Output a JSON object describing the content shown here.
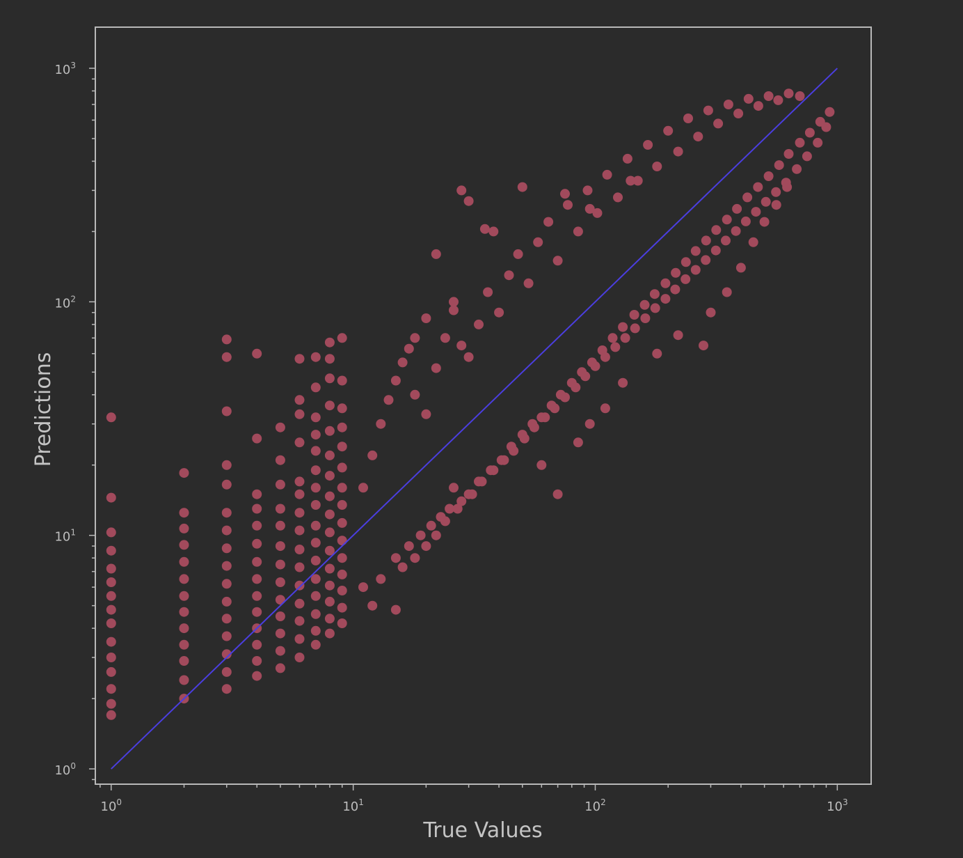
{
  "chart_data": {
    "type": "scatter",
    "title": "",
    "xlabel": "True Values",
    "ylabel": "Predictions",
    "xscale": "log",
    "yscale": "log",
    "xlim": [
      0.86,
      1380
    ],
    "ylim": [
      0.86,
      1500
    ],
    "xticks": [
      {
        "base": "10",
        "exp": "0"
      },
      {
        "base": "10",
        "exp": "1"
      },
      {
        "base": "10",
        "exp": "2"
      },
      {
        "base": "10",
        "exp": "3"
      }
    ],
    "yticks": [
      {
        "base": "10",
        "exp": "0"
      },
      {
        "base": "10",
        "exp": "1"
      },
      {
        "base": "10",
        "exp": "2"
      },
      {
        "base": "10",
        "exp": "3"
      }
    ],
    "grid": false,
    "colors": {
      "background": "#2b2b2b",
      "frame": "#b9b9b9",
      "points": "#a24a5c",
      "reference_line": "#4b3ee0"
    },
    "series": [
      {
        "kind": "scatter",
        "color": "#a24a5c",
        "points": [
          [
            1,
            1.7
          ],
          [
            1,
            1.9
          ],
          [
            1,
            2.2
          ],
          [
            1,
            2.6
          ],
          [
            1,
            3.0
          ],
          [
            1,
            3.5
          ],
          [
            1,
            4.2
          ],
          [
            1,
            4.8
          ],
          [
            1,
            5.5
          ],
          [
            1,
            6.3
          ],
          [
            1,
            7.2
          ],
          [
            1,
            8.6
          ],
          [
            1,
            10.3
          ],
          [
            1,
            14.5
          ],
          [
            1,
            32
          ],
          [
            2,
            2.0
          ],
          [
            2,
            2.4
          ],
          [
            2,
            2.9
          ],
          [
            2,
            3.4
          ],
          [
            2,
            4.0
          ],
          [
            2,
            4.7
          ],
          [
            2,
            5.5
          ],
          [
            2,
            6.5
          ],
          [
            2,
            7.7
          ],
          [
            2,
            9.1
          ],
          [
            2,
            10.7
          ],
          [
            2,
            12.5
          ],
          [
            2,
            18.5
          ],
          [
            3,
            2.2
          ],
          [
            3,
            2.6
          ],
          [
            3,
            3.1
          ],
          [
            3,
            3.7
          ],
          [
            3,
            4.4
          ],
          [
            3,
            5.2
          ],
          [
            3,
            6.2
          ],
          [
            3,
            7.4
          ],
          [
            3,
            8.8
          ],
          [
            3,
            10.5
          ],
          [
            3,
            12.5
          ],
          [
            3,
            16.5
          ],
          [
            3,
            20
          ],
          [
            3,
            34
          ],
          [
            3,
            58
          ],
          [
            3,
            69
          ],
          [
            4,
            2.5
          ],
          [
            4,
            2.9
          ],
          [
            4,
            3.4
          ],
          [
            4,
            4.0
          ],
          [
            4,
            4.7
          ],
          [
            4,
            5.5
          ],
          [
            4,
            6.5
          ],
          [
            4,
            7.7
          ],
          [
            4,
            9.2
          ],
          [
            4,
            11
          ],
          [
            4,
            13
          ],
          [
            4,
            15
          ],
          [
            4,
            26
          ],
          [
            4,
            60
          ],
          [
            5,
            2.7
          ],
          [
            5,
            3.2
          ],
          [
            5,
            3.8
          ],
          [
            5,
            4.5
          ],
          [
            5,
            5.3
          ],
          [
            5,
            6.3
          ],
          [
            5,
            7.5
          ],
          [
            5,
            9
          ],
          [
            5,
            11
          ],
          [
            5,
            13
          ],
          [
            5,
            16.5
          ],
          [
            5,
            21
          ],
          [
            5,
            29
          ],
          [
            6,
            3.0
          ],
          [
            6,
            3.6
          ],
          [
            6,
            4.3
          ],
          [
            6,
            5.1
          ],
          [
            6,
            6.1
          ],
          [
            6,
            7.3
          ],
          [
            6,
            8.7
          ],
          [
            6,
            10.5
          ],
          [
            6,
            12.5
          ],
          [
            6,
            15
          ],
          [
            6,
            17
          ],
          [
            6,
            25
          ],
          [
            6,
            33
          ],
          [
            6,
            38
          ],
          [
            6,
            57
          ],
          [
            7,
            3.4
          ],
          [
            7,
            3.9
          ],
          [
            7,
            4.6
          ],
          [
            7,
            5.5
          ],
          [
            7,
            6.5
          ],
          [
            7,
            7.8
          ],
          [
            7,
            9.3
          ],
          [
            7,
            11
          ],
          [
            7,
            13.5
          ],
          [
            7,
            16
          ],
          [
            7,
            19
          ],
          [
            7,
            23
          ],
          [
            7,
            27
          ],
          [
            7,
            32
          ],
          [
            7,
            43
          ],
          [
            7,
            58
          ],
          [
            8,
            3.8
          ],
          [
            8,
            4.4
          ],
          [
            8,
            5.2
          ],
          [
            8,
            6.1
          ],
          [
            8,
            7.2
          ],
          [
            8,
            8.6
          ],
          [
            8,
            10.3
          ],
          [
            8,
            12.3
          ],
          [
            8,
            14.7
          ],
          [
            8,
            18
          ],
          [
            8,
            22
          ],
          [
            8,
            28
          ],
          [
            8,
            36
          ],
          [
            8,
            47
          ],
          [
            8,
            57
          ],
          [
            8,
            67
          ],
          [
            9,
            4.2
          ],
          [
            9,
            4.9
          ],
          [
            9,
            5.8
          ],
          [
            9,
            6.8
          ],
          [
            9,
            8
          ],
          [
            9,
            9.5
          ],
          [
            9,
            11.3
          ],
          [
            9,
            13.5
          ],
          [
            9,
            16
          ],
          [
            9,
            19.5
          ],
          [
            9,
            24
          ],
          [
            9,
            29
          ],
          [
            9,
            35
          ],
          [
            9,
            46
          ],
          [
            9,
            70
          ],
          [
            12,
            5
          ],
          [
            15,
            4.8
          ],
          [
            11,
            6
          ],
          [
            13,
            6.5
          ],
          [
            16,
            7.3
          ],
          [
            18,
            8
          ],
          [
            20,
            9
          ],
          [
            22,
            10
          ],
          [
            24,
            11.5
          ],
          [
            27,
            13
          ],
          [
            30,
            15
          ],
          [
            26,
            16
          ],
          [
            33,
            17
          ],
          [
            37,
            19
          ],
          [
            41,
            21
          ],
          [
            45,
            24
          ],
          [
            50,
            27
          ],
          [
            55,
            30
          ],
          [
            60,
            32
          ],
          [
            66,
            36
          ],
          [
            72,
            40
          ],
          [
            80,
            45
          ],
          [
            88,
            50
          ],
          [
            97,
            55
          ],
          [
            107,
            62
          ],
          [
            118,
            70
          ],
          [
            130,
            78
          ],
          [
            145,
            88
          ],
          [
            160,
            97
          ],
          [
            176,
            108
          ],
          [
            195,
            120
          ],
          [
            215,
            133
          ],
          [
            237,
            148
          ],
          [
            260,
            165
          ],
          [
            287,
            183
          ],
          [
            316,
            203
          ],
          [
            350,
            225
          ],
          [
            385,
            250
          ],
          [
            425,
            280
          ],
          [
            470,
            310
          ],
          [
            520,
            345
          ],
          [
            575,
            385
          ],
          [
            630,
            430
          ],
          [
            700,
            480
          ],
          [
            770,
            530
          ],
          [
            850,
            590
          ],
          [
            930,
            650
          ],
          [
            11,
            16
          ],
          [
            12,
            22
          ],
          [
            13,
            30
          ],
          [
            14,
            38
          ],
          [
            15,
            46
          ],
          [
            16,
            55
          ],
          [
            17,
            63
          ],
          [
            18,
            40
          ],
          [
            20,
            33
          ],
          [
            22,
            52
          ],
          [
            24,
            70
          ],
          [
            26,
            92
          ],
          [
            28,
            65
          ],
          [
            30,
            58
          ],
          [
            33,
            80
          ],
          [
            36,
            110
          ],
          [
            40,
            90
          ],
          [
            44,
            130
          ],
          [
            48,
            160
          ],
          [
            53,
            120
          ],
          [
            58,
            180
          ],
          [
            64,
            220
          ],
          [
            70,
            150
          ],
          [
            77,
            260
          ],
          [
            85,
            200
          ],
          [
            93,
            300
          ],
          [
            102,
            240
          ],
          [
            112,
            350
          ],
          [
            124,
            280
          ],
          [
            136,
            410
          ],
          [
            150,
            330
          ],
          [
            165,
            470
          ],
          [
            180,
            380
          ],
          [
            200,
            540
          ],
          [
            220,
            440
          ],
          [
            242,
            610
          ],
          [
            266,
            510
          ],
          [
            293,
            660
          ],
          [
            322,
            580
          ],
          [
            355,
            700
          ],
          [
            390,
            640
          ],
          [
            430,
            740
          ],
          [
            472,
            690
          ],
          [
            520,
            760
          ],
          [
            570,
            730
          ],
          [
            630,
            780
          ],
          [
            700,
            760
          ],
          [
            35,
            205
          ],
          [
            30,
            270
          ],
          [
            28,
            300
          ],
          [
            50,
            310
          ],
          [
            38,
            200
          ],
          [
            22,
            160
          ],
          [
            26,
            100
          ],
          [
            20,
            85
          ],
          [
            18,
            70
          ],
          [
            75,
            290
          ],
          [
            95,
            250
          ],
          [
            140,
            330
          ],
          [
            60,
            20
          ],
          [
            70,
            15
          ],
          [
            85,
            25
          ],
          [
            95,
            30
          ],
          [
            110,
            35
          ],
          [
            130,
            45
          ],
          [
            180,
            60
          ],
          [
            220,
            72
          ],
          [
            280,
            65
          ],
          [
            300,
            90
          ],
          [
            350,
            110
          ],
          [
            400,
            140
          ],
          [
            450,
            180
          ],
          [
            500,
            220
          ],
          [
            560,
            260
          ],
          [
            620,
            310
          ],
          [
            680,
            370
          ],
          [
            750,
            420
          ],
          [
            830,
            480
          ],
          [
            900,
            560
          ],
          [
            15,
            8
          ],
          [
            17,
            9
          ],
          [
            19,
            10
          ],
          [
            21,
            11
          ],
          [
            23,
            12
          ],
          [
            25,
            13
          ],
          [
            28,
            14
          ],
          [
            31,
            15
          ],
          [
            34,
            17
          ],
          [
            38,
            19
          ],
          [
            42,
            21
          ],
          [
            46,
            23
          ],
          [
            51,
            26
          ],
          [
            56,
            29
          ],
          [
            62,
            32
          ],
          [
            68,
            35
          ],
          [
            75,
            39
          ],
          [
            83,
            43
          ],
          [
            91,
            48
          ],
          [
            100,
            53
          ],
          [
            110,
            58
          ],
          [
            121,
            64
          ],
          [
            133,
            70
          ],
          [
            146,
            77
          ],
          [
            161,
            85
          ],
          [
            177,
            94
          ],
          [
            195,
            103
          ],
          [
            214,
            113
          ],
          [
            236,
            125
          ],
          [
            260,
            137
          ],
          [
            286,
            151
          ],
          [
            315,
            166
          ],
          [
            346,
            183
          ],
          [
            381,
            201
          ],
          [
            419,
            221
          ],
          [
            461,
            243
          ],
          [
            507,
            268
          ],
          [
            558,
            295
          ],
          [
            614,
            324
          ]
        ]
      },
      {
        "kind": "line",
        "color": "#4b3ee0",
        "points": [
          [
            1,
            1
          ],
          [
            1000,
            1000
          ]
        ]
      }
    ]
  }
}
